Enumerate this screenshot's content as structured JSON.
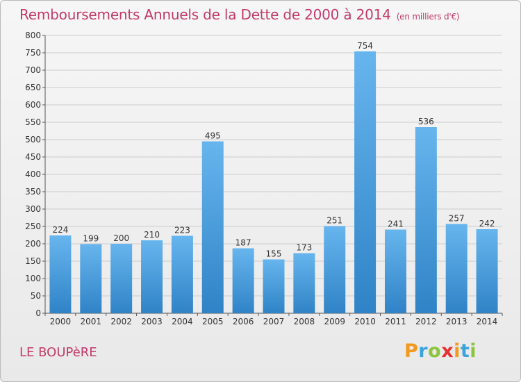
{
  "title": "Remboursements Annuels de la Dette de 2000 à 2014",
  "subtitle": "(en milliers d'€)",
  "commune": "LE BOUPèRE",
  "logo": {
    "letters": [
      "P",
      "r",
      "o",
      "x",
      "i",
      "t",
      "i"
    ],
    "colors": [
      "#f29a1f",
      "#3aa3dc",
      "#8cc43e",
      "#e6312e",
      "#f29a1f",
      "#3aa3dc",
      "#8cc43e"
    ]
  },
  "colors": {
    "bar_top": "#67b5ee",
    "bar_bottom": "#2f83c6",
    "text": "#c23a6b",
    "grid": "#cccccc"
  },
  "chart_data": {
    "type": "bar",
    "categories": [
      "2000",
      "2001",
      "2002",
      "2003",
      "2004",
      "2005",
      "2006",
      "2007",
      "2008",
      "2009",
      "2010",
      "2011",
      "2012",
      "2013",
      "2014"
    ],
    "values": [
      224,
      199,
      200,
      210,
      223,
      495,
      187,
      155,
      173,
      251,
      754,
      241,
      536,
      257,
      242
    ],
    "yticks": [
      0,
      50,
      100,
      150,
      200,
      250,
      300,
      350,
      400,
      450,
      500,
      550,
      600,
      650,
      700,
      750,
      800
    ],
    "ylim": [
      0,
      800
    ],
    "grid": true
  }
}
